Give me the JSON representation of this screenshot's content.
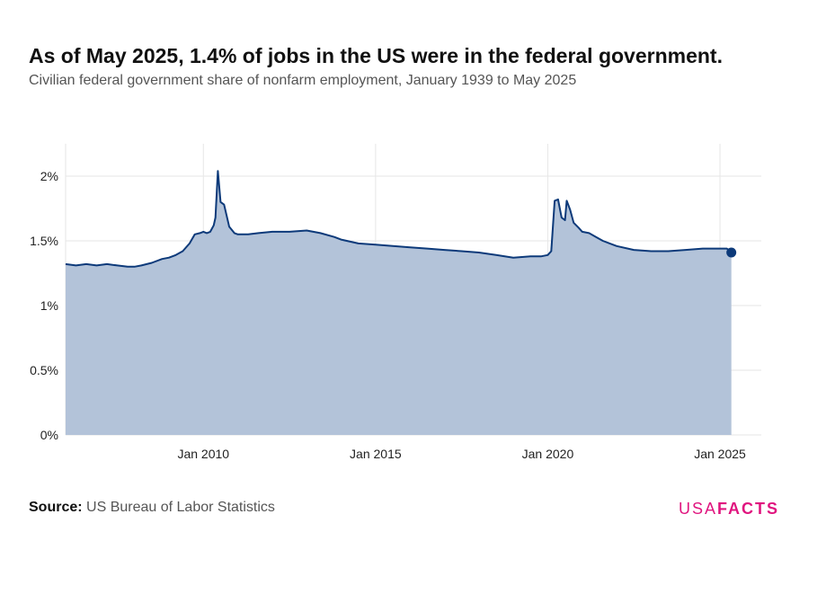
{
  "header": {
    "title": "As of May 2025, 1.4% of jobs in the US were in the federal government.",
    "subtitle": "Civilian federal government share of nonfarm employment, January 1939 to May 2025"
  },
  "footer": {
    "source_label": "Source:",
    "source_text": "US Bureau of Labor Statistics",
    "brand_part1": "USA",
    "brand_part2": "FACTS"
  },
  "colors": {
    "line": "#0d3a7a",
    "area": "#b3c3d9",
    "brand": "#e0157f"
  },
  "chart_data": {
    "type": "area",
    "x_unit": "year",
    "xlim": [
      2006,
      2026.2
    ],
    "ylim": [
      0,
      2.25
    ],
    "y_unit": "%",
    "grid": true,
    "y_ticks": [
      0,
      0.5,
      1,
      1.5,
      2
    ],
    "y_tick_labels": [
      "0%",
      "0.5%",
      "1%",
      "1.5%",
      "2%"
    ],
    "x_ticks": [
      2010,
      2015,
      2020,
      2025
    ],
    "x_tick_labels": [
      "Jan 2010",
      "Jan 2015",
      "Jan 2020",
      "Jan 2025"
    ],
    "x": [
      2006.0,
      2006.3,
      2006.6,
      2006.9,
      2007.2,
      2007.5,
      2007.8,
      2008.0,
      2008.2,
      2008.5,
      2008.8,
      2009.0,
      2009.2,
      2009.4,
      2009.6,
      2009.75,
      2009.9,
      2010.0,
      2010.1,
      2010.2,
      2010.3,
      2010.35,
      2010.42,
      2010.5,
      2010.6,
      2010.75,
      2010.9,
      2011.0,
      2011.3,
      2011.6,
      2012.0,
      2012.5,
      2013.0,
      2013.4,
      2013.8,
      2014.0,
      2014.5,
      2015.0,
      2015.5,
      2016.0,
      2016.5,
      2017.0,
      2017.5,
      2018.0,
      2018.5,
      2019.0,
      2019.5,
      2019.8,
      2020.0,
      2020.1,
      2020.2,
      2020.3,
      2020.4,
      2020.5,
      2020.55,
      2020.65,
      2020.75,
      2020.9,
      2021.0,
      2021.2,
      2021.4,
      2021.6,
      2021.8,
      2022.0,
      2022.5,
      2023.0,
      2023.5,
      2024.0,
      2024.5,
      2024.9,
      2025.0,
      2025.2,
      2025.33
    ],
    "values": [
      1.32,
      1.31,
      1.32,
      1.31,
      1.32,
      1.31,
      1.3,
      1.3,
      1.31,
      1.33,
      1.36,
      1.37,
      1.39,
      1.42,
      1.48,
      1.55,
      1.56,
      1.57,
      1.56,
      1.57,
      1.62,
      1.68,
      2.04,
      1.8,
      1.78,
      1.61,
      1.56,
      1.55,
      1.55,
      1.56,
      1.57,
      1.57,
      1.58,
      1.56,
      1.53,
      1.51,
      1.48,
      1.47,
      1.46,
      1.45,
      1.44,
      1.43,
      1.42,
      1.41,
      1.39,
      1.37,
      1.38,
      1.38,
      1.39,
      1.42,
      1.81,
      1.82,
      1.68,
      1.66,
      1.81,
      1.74,
      1.64,
      1.6,
      1.57,
      1.56,
      1.53,
      1.5,
      1.48,
      1.46,
      1.43,
      1.42,
      1.42,
      1.43,
      1.44,
      1.44,
      1.44,
      1.44,
      1.41
    ]
  }
}
